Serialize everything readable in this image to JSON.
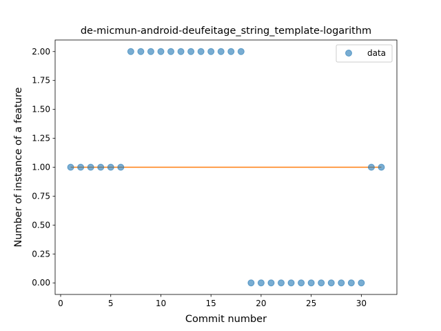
{
  "chart_data": {
    "type": "scatter",
    "title": "de-micmun-android-deufeitage_string_template-logarithm",
    "xlabel": "Commit number",
    "ylabel": "Number of instance of a feature",
    "xlim": [
      -0.55,
      33.55
    ],
    "ylim": [
      -0.1,
      2.1
    ],
    "xticks": [
      0,
      5,
      10,
      15,
      20,
      25,
      30
    ],
    "xtick_labels": [
      "0",
      "5",
      "10",
      "15",
      "20",
      "25",
      "30"
    ],
    "yticks": [
      0.0,
      0.25,
      0.5,
      0.75,
      1.0,
      1.25,
      1.5,
      1.75,
      2.0
    ],
    "ytick_labels": [
      "0.00",
      "0.25",
      "0.50",
      "0.75",
      "1.00",
      "1.25",
      "1.50",
      "1.75",
      "2.00"
    ],
    "grid": false,
    "legend": {
      "position": "top-right",
      "entries": [
        "data"
      ]
    },
    "series": [
      {
        "name": "data",
        "kind": "scatter",
        "color": "#1f77b4",
        "alpha": 0.6,
        "x": [
          1,
          2,
          3,
          4,
          5,
          6,
          7,
          8,
          9,
          10,
          11,
          12,
          13,
          14,
          15,
          16,
          17,
          18,
          19,
          20,
          21,
          22,
          23,
          24,
          25,
          26,
          27,
          28,
          29,
          30,
          31,
          32
        ],
        "y": [
          1,
          1,
          1,
          1,
          1,
          1,
          2,
          2,
          2,
          2,
          2,
          2,
          2,
          2,
          2,
          2,
          2,
          2,
          0,
          0,
          0,
          0,
          0,
          0,
          0,
          0,
          0,
          0,
          0,
          0,
          1,
          1
        ]
      },
      {
        "kind": "line",
        "color": "#ff7f0e",
        "x": [
          1,
          32
        ],
        "y": [
          1,
          1
        ]
      }
    ]
  }
}
